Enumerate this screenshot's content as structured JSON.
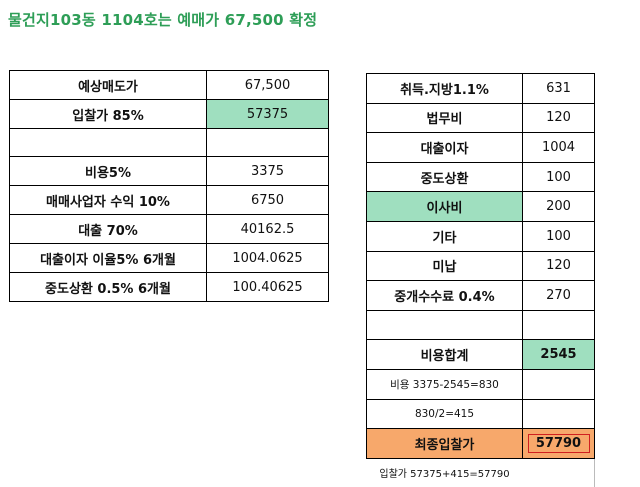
{
  "title": "물건지103동 1104호는 예매가 67,500 확정",
  "left_table": {
    "rows": [
      {
        "label": "예상매도가",
        "value": "67,500"
      },
      {
        "label": "입찰가 85%",
        "value": "57375"
      },
      {
        "label": "",
        "value": ""
      },
      {
        "label": "비용5%",
        "value": "3375"
      },
      {
        "label": "매매사업자 수익 10%",
        "value": "6750"
      },
      {
        "label": "대출 70%",
        "value": "40162.5"
      },
      {
        "label": "대출이자 이율5% 6개월",
        "value": "1004.0625"
      },
      {
        "label": "중도상환 0.5% 6개월",
        "value": "100.40625"
      }
    ],
    "highlight_color": "#9fdfbf"
  },
  "right_table": {
    "rows": [
      {
        "label": "취득.지방1.1%",
        "value": "631"
      },
      {
        "label": "법무비",
        "value": "120"
      },
      {
        "label": "대출이자",
        "value": "1004"
      },
      {
        "label": "중도상환",
        "value": "100"
      },
      {
        "label": "이사비",
        "value": "200"
      },
      {
        "label": "기타",
        "value": "100"
      },
      {
        "label": "미납",
        "value": "120"
      },
      {
        "label": "중개수수료 0.4%",
        "value": "270"
      },
      {
        "label": "",
        "value": ""
      },
      {
        "label": "비용합계",
        "value": "2545"
      },
      {
        "label": "비용 3375-2545=830",
        "value": ""
      },
      {
        "label": "830/2=415",
        "value": ""
      },
      {
        "label": "최종입찰가",
        "value": "57790"
      },
      {
        "label": "입찰가 57375+415=57790",
        "value": ""
      }
    ],
    "highlight_color": "#9fdfbf",
    "final_color": "#f7a86b",
    "final_border_color": "#d02020"
  }
}
